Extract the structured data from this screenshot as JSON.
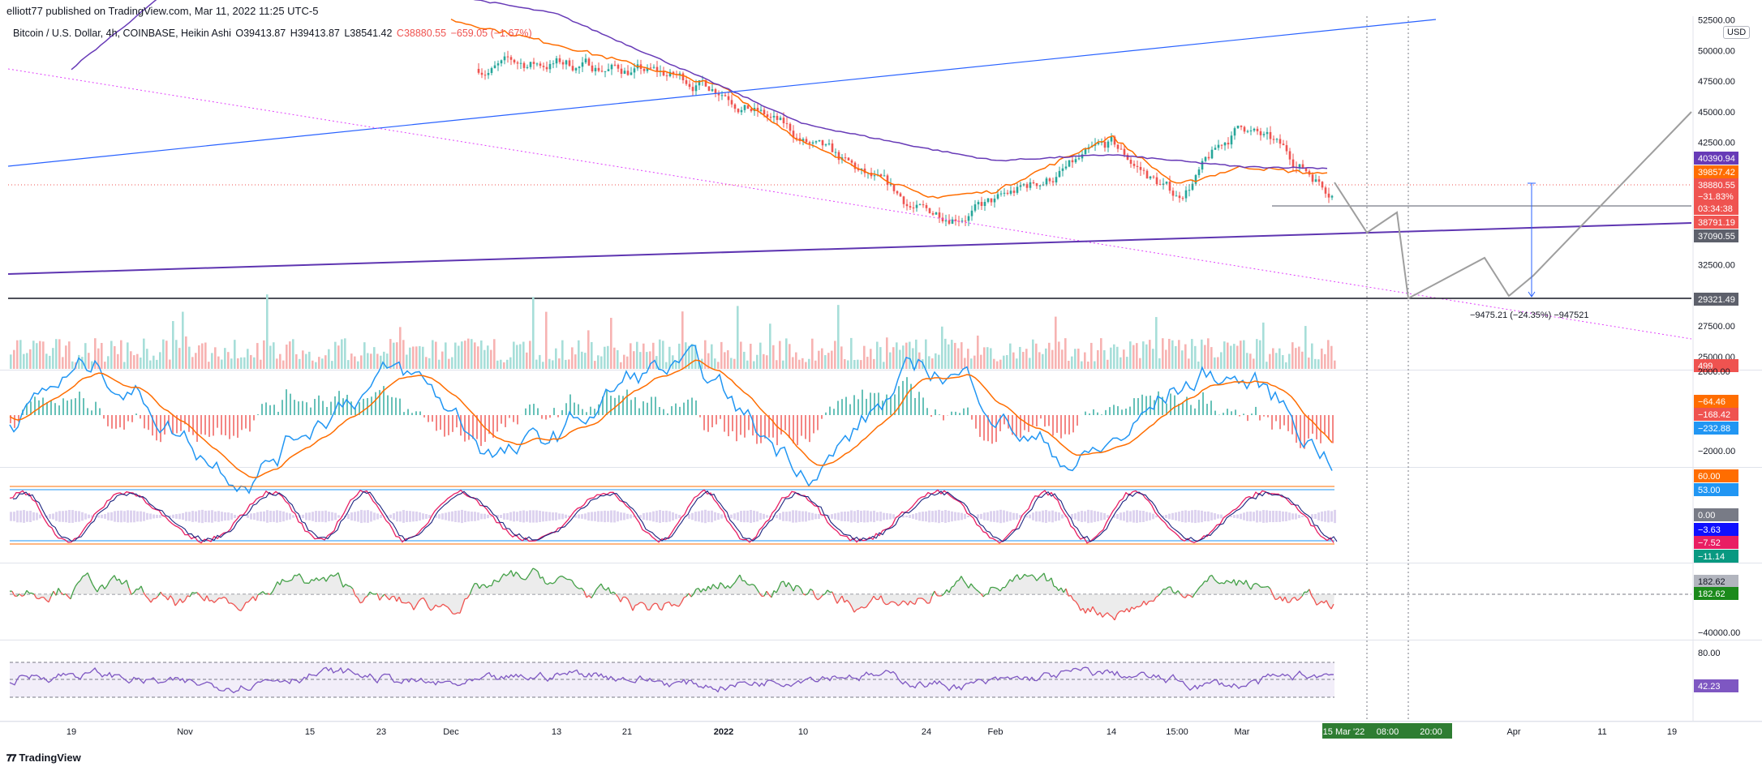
{
  "header": {
    "published": "elliott77 published on TradingView.com, Mar 11, 2022 11:25 UTC-5"
  },
  "symbol_bar": {
    "name": "Bitcoin / U.S. Dollar, 4h, COINBASE, Heikin Ashi",
    "open": "O39413.87",
    "high": "H39413.87",
    "low": "L38541.42",
    "close": "C38880.55",
    "change": "−659.05 (−1.67%)"
  },
  "currency_button": "USD",
  "footer": {
    "brand": "TradingView",
    "logo_icon": "tradingview-logo-icon"
  },
  "chart_data": {
    "type": "candlestick",
    "series": [
      {
        "name": "Bitcoin / U.S. Dollar, 4h, COINBASE, Heikin Ashi",
        "note": "approximate close path read from the chart",
        "x": [
          "Oct 19",
          "Nov",
          "Nov 15",
          "Nov 23",
          "Dec",
          "Dec 13",
          "Dec 21",
          "2022",
          "Jan 10",
          "Jan 24",
          "Feb",
          "Feb 14",
          "Feb 15:00",
          "Mar",
          "Mar 10"
        ],
        "values": [
          null,
          null,
          null,
          null,
          48500,
          49000,
          48500,
          47000,
          42500,
          36500,
          37500,
          42000,
          38000,
          44000,
          38880.55
        ]
      },
      {
        "name": "orange moving average",
        "x": [
          "Dec",
          "Dec 13",
          "Dec 21",
          "2022",
          "Jan 10",
          "Jan 24",
          "Feb",
          "Feb 14",
          "Feb 15:00",
          "Mar",
          "Mar 10"
        ],
        "values": [
          52500,
          50500,
          49000,
          47000,
          42500,
          38000,
          38500,
          43000,
          39000,
          40500,
          39857.42
        ]
      },
      {
        "name": "purple moving average",
        "x": [
          "Oct 19",
          "Nov",
          "Dec",
          "Dec 13",
          "2022",
          "Jan 10",
          "Jan 24",
          "Feb",
          "Feb 14",
          "Mar",
          "Mar 10"
        ],
        "values": [
          48500,
          56000,
          54500,
          53000,
          47000,
          44000,
          42000,
          41000,
          41500,
          40500,
          40390.94
        ]
      }
    ],
    "price_axis": {
      "ticks": [
        "52500.00",
        "50000.00",
        "47500.00",
        "45000.00",
        "42500.00",
        "32500.00",
        "30000.00",
        "27500.00",
        "25000.00"
      ],
      "ylim": [
        24000,
        52800
      ]
    },
    "price_labels": [
      {
        "text": "40390.94",
        "color": "#673ab7"
      },
      {
        "text": "39857.42",
        "color": "#ff6d00"
      },
      {
        "text": "38880.55",
        "color": "#ef5350"
      },
      {
        "text": "−31.83%",
        "color": "#ef5350"
      },
      {
        "text": "03:34:38",
        "color": "#ef5350"
      },
      {
        "text": "38791.19",
        "color": "#ef5350"
      },
      {
        "text": "37090.55",
        "color": "#5d606b"
      },
      {
        "text": "29321.49",
        "color": "#5d606b"
      },
      {
        "text": "499",
        "color": "#ef5350"
      }
    ],
    "drawings": {
      "measure_label": "−9475.21 (−24.35%) −947521",
      "horizontal_levels": [
        29321.49,
        38880.55,
        37090.55
      ]
    },
    "time_axis": {
      "ticks": [
        "19",
        "Nov",
        "15",
        "23",
        "Dec",
        "13",
        "21",
        "2022",
        "10",
        "24",
        "Feb",
        "14",
        "15:00",
        "Mar",
        "Apr",
        "11",
        "19"
      ],
      "highlight": [
        "15 Mar '22",
        "08:00",
        "20:00"
      ]
    },
    "volume": {
      "label": "499"
    },
    "macd": {
      "axis_ticks": [
        "2000.00",
        "−2000.00"
      ],
      "labels": [
        {
          "text": "−64.46",
          "color": "#ff6d00"
        },
        {
          "text": "−168.42",
          "color": "#ef5350"
        },
        {
          "text": "−232.88",
          "color": "#2196f3"
        }
      ]
    },
    "oscillator": {
      "labels": [
        {
          "text": "60.00",
          "color": "#ff6d00"
        },
        {
          "text": "53.00",
          "color": "#2196f3"
        },
        {
          "text": "0.00",
          "color": "#787b86"
        },
        {
          "text": "−3.63",
          "color": "#1010ff"
        },
        {
          "text": "−7.52",
          "color": "#e91e63"
        },
        {
          "text": "−11.14",
          "color": "#089981"
        }
      ]
    },
    "cumulative": {
      "axis_ticks": [
        "−40000.00"
      ],
      "labels": [
        {
          "text": "182.62",
          "color": "#b2b5be"
        },
        {
          "text": "182.62",
          "color": "#1b8a1b"
        }
      ]
    },
    "rsi": {
      "axis_ticks": [
        "80.00"
      ],
      "labels": [
        {
          "text": "42.23",
          "color": "#7e57c2"
        }
      ]
    }
  }
}
